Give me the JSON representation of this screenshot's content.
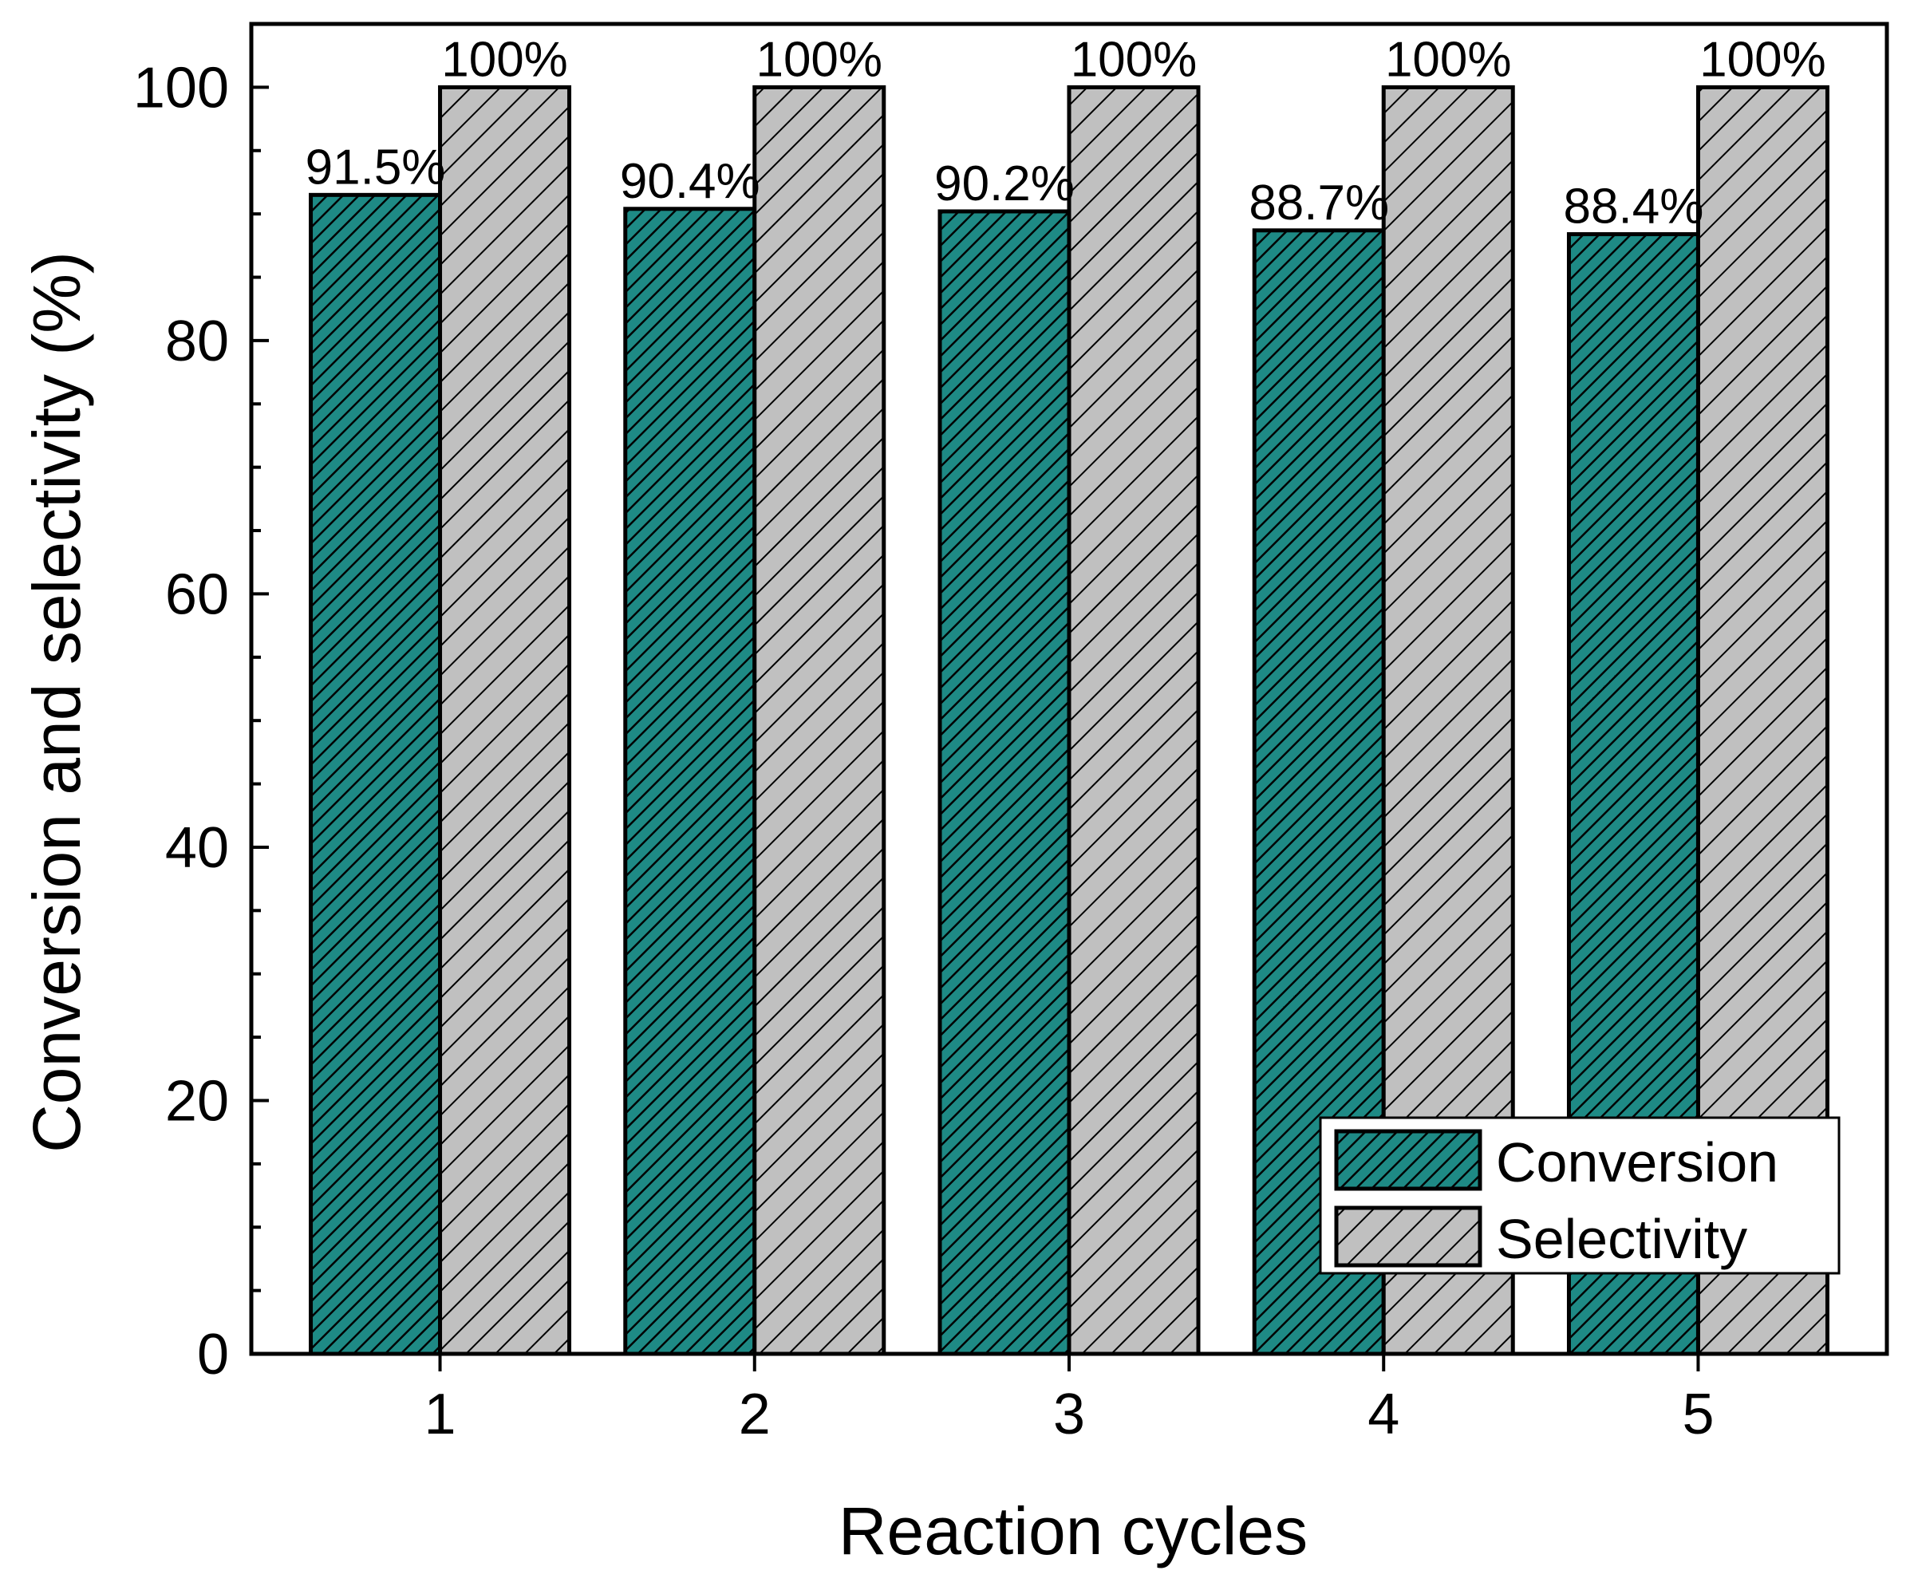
{
  "chart_data": {
    "type": "bar",
    "title": "",
    "xlabel": "Reaction cycles",
    "ylabel": "Conversion and selectivity (%)",
    "categories": [
      "1",
      "2",
      "3",
      "4",
      "5"
    ],
    "ylim": [
      0,
      105
    ],
    "yticks": [
      0,
      20,
      40,
      60,
      80,
      100
    ],
    "grid": false,
    "legend_position": "bottom-right",
    "series": [
      {
        "name": "Conversion",
        "values": [
          91.5,
          90.4,
          90.2,
          88.7,
          88.4
        ],
        "labels": [
          "91.5%",
          "90.4%",
          "90.2%",
          "88.7%",
          "88.4%"
        ],
        "color": "#1e8a85",
        "hatch_color": "#000000"
      },
      {
        "name": "Selectivity",
        "values": [
          100,
          100,
          100,
          100,
          100
        ],
        "labels": [
          "100%",
          "100%",
          "100%",
          "100%",
          "100%"
        ],
        "color": "#c0c0c0",
        "hatch_color": "#000000"
      }
    ]
  }
}
